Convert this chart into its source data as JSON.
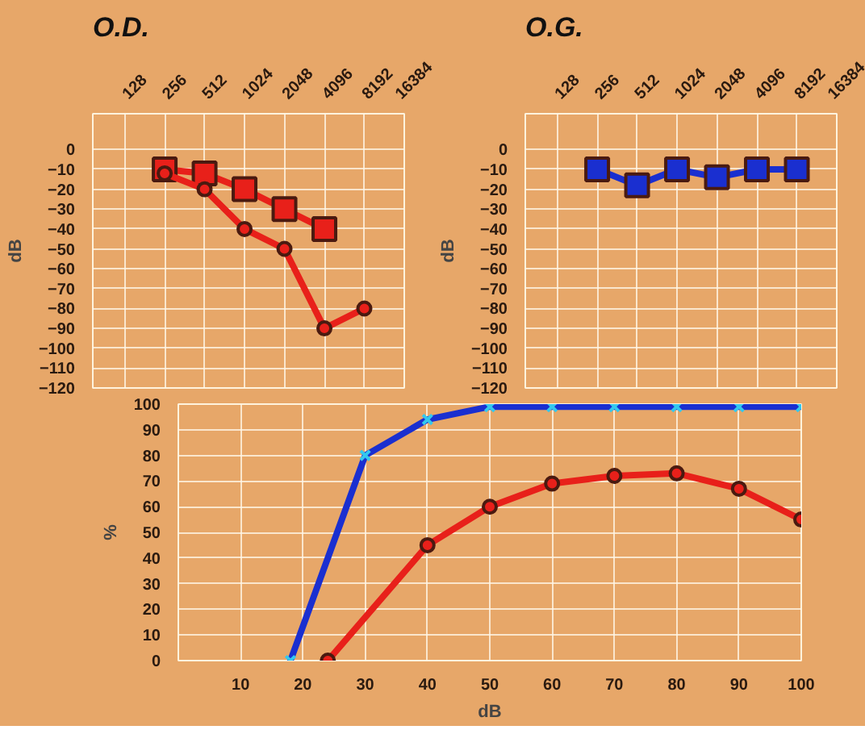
{
  "chart_data": [
    {
      "type": "line",
      "title": "O.D.",
      "ylabel": "dB",
      "categories": [
        "128",
        "256",
        "512",
        "1024",
        "2048",
        "4096",
        "8192",
        "16384"
      ],
      "ylim": [
        -120,
        18
      ],
      "yticks": [
        0,
        -10,
        -20,
        -30,
        -40,
        -50,
        -60,
        -70,
        -80,
        -90,
        -100,
        -110,
        -120
      ],
      "grid": true,
      "series": [
        {
          "color": "#e8201a",
          "marker": "square",
          "values": [
            null,
            -10,
            -12,
            -20,
            -30,
            -40,
            null,
            null
          ]
        },
        {
          "color": "#e8201a",
          "marker": "circle",
          "values": [
            null,
            -12,
            -20,
            -40,
            -50,
            -90,
            -80,
            null
          ]
        }
      ]
    },
    {
      "type": "line",
      "title": "O.G.",
      "ylabel": "dB",
      "categories": [
        "128",
        "256",
        "512",
        "1024",
        "2048",
        "4096",
        "8192",
        "16384"
      ],
      "ylim": [
        -120,
        18
      ],
      "yticks": [
        0,
        -10,
        -20,
        -30,
        -40,
        -50,
        -60,
        -70,
        -80,
        -90,
        -100,
        -110,
        -120
      ],
      "grid": true,
      "series": [
        {
          "color": "#1a2fd0",
          "marker": "square",
          "values": [
            null,
            -10,
            -18,
            -10,
            -14,
            -10,
            -10,
            null
          ]
        }
      ]
    },
    {
      "type": "line",
      "xlabel": "dB",
      "ylabel": "%",
      "xlim": [
        0,
        100
      ],
      "xticks": [
        10,
        20,
        30,
        40,
        50,
        60,
        70,
        80,
        90,
        100
      ],
      "ylim": [
        0,
        100
      ],
      "yticks": [
        0,
        10,
        20,
        30,
        40,
        50,
        60,
        70,
        80,
        90,
        100
      ],
      "grid": true,
      "series": [
        {
          "color": "#1a2fd0",
          "marker": "cross",
          "x": [
            18,
            30,
            40,
            50,
            60,
            70,
            80,
            90,
            100
          ],
          "values": [
            0,
            80,
            94,
            99,
            99,
            99,
            99,
            99,
            99
          ]
        },
        {
          "color": "#e8201a",
          "marker": "circle",
          "x": [
            24,
            40,
            50,
            60,
            70,
            80,
            90,
            100
          ],
          "values": [
            0,
            45,
            60,
            69,
            72,
            73,
            67,
            55
          ]
        }
      ]
    }
  ]
}
